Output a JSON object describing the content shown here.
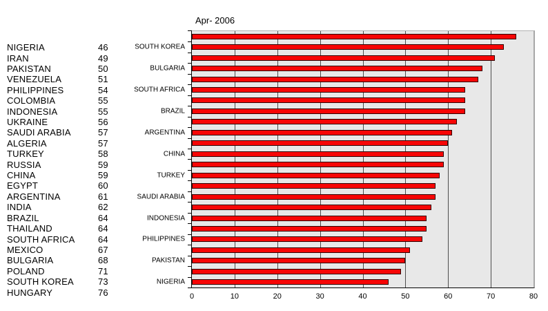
{
  "left_list": {
    "rows": [
      {
        "country": "NIGERIA",
        "value": "46"
      },
      {
        "country": "IRAN",
        "value": "49"
      },
      {
        "country": "PAKISTAN",
        "value": "50"
      },
      {
        "country": "VENEZUELA",
        "value": "51"
      },
      {
        "country": "PHILIPPINES",
        "value": "54"
      },
      {
        "country": "COLOMBIA",
        "value": "55"
      },
      {
        "country": "INDONESIA",
        "value": "55"
      },
      {
        "country": "UKRAINE",
        "value": "56"
      },
      {
        "country": "SAUDI ARABIA",
        "value": "57"
      },
      {
        "country": "ALGERIA",
        "value": "57"
      },
      {
        "country": "TURKEY",
        "value": "58"
      },
      {
        "country": "RUSSIA",
        "value": "59"
      },
      {
        "country": "CHINA",
        "value": "59"
      },
      {
        "country": "EGYPT",
        "value": "60"
      },
      {
        "country": "ARGENTINA",
        "value": "61"
      },
      {
        "country": "INDIA",
        "value": "62"
      },
      {
        "country": "BRAZIL",
        "value": "64"
      },
      {
        "country": "THAILAND",
        "value": "64"
      },
      {
        "country": "SOUTH AFRICA",
        "value": "64"
      },
      {
        "country": "MEXICO",
        "value": "67"
      },
      {
        "country": "BULGARIA",
        "value": "68"
      },
      {
        "country": "POLAND",
        "value": "71"
      },
      {
        "country": "SOUTH KOREA",
        "value": "73"
      },
      {
        "country": "HUNGARY",
        "value": "76"
      }
    ]
  },
  "chart_data": {
    "type": "bar",
    "orientation": "horizontal",
    "title": "Apr- 2006",
    "categories": [
      "HUNGARY",
      "SOUTH KOREA",
      "POLAND",
      "BULGARIA",
      "MEXICO",
      "SOUTH AFRICA",
      "THAILAND",
      "BRAZIL",
      "INDIA",
      "ARGENTINA",
      "EGYPT",
      "CHINA",
      "RUSSIA",
      "TURKEY",
      "ALGERIA",
      "SAUDI ARABIA",
      "UKRAINE",
      "INDONESIA",
      "COLOMBIA",
      "PHILIPPINES",
      "VENEZUELA",
      "PAKISTAN",
      "IRAN",
      "NIGERIA"
    ],
    "values": [
      76,
      73,
      71,
      68,
      67,
      64,
      64,
      64,
      62,
      61,
      60,
      59,
      59,
      58,
      57,
      57,
      56,
      55,
      55,
      54,
      51,
      50,
      49,
      46
    ],
    "visible_category_labels": [
      "SOUTH KOREA",
      "BULGARIA",
      "SOUTH AFRICA",
      "BRAZIL",
      "ARGENTINA",
      "CHINA",
      "TURKEY",
      "SAUDI ARABIA",
      "INDONESIA",
      "PHILIPPINES",
      "PAKISTAN",
      "NIGERIA"
    ],
    "label_every_other_bar": true,
    "xlim": [
      0,
      80
    ],
    "x_ticks": [
      0,
      10,
      20,
      30,
      40,
      50,
      60,
      70,
      80
    ],
    "grid": "vertical",
    "legend": "none",
    "colors": {
      "bar_fill": "#f70505",
      "bar_border": "#2e0303",
      "plot_background": "#e8e8e8",
      "gridline": "#4d4d4d",
      "axis": "#000000"
    }
  }
}
